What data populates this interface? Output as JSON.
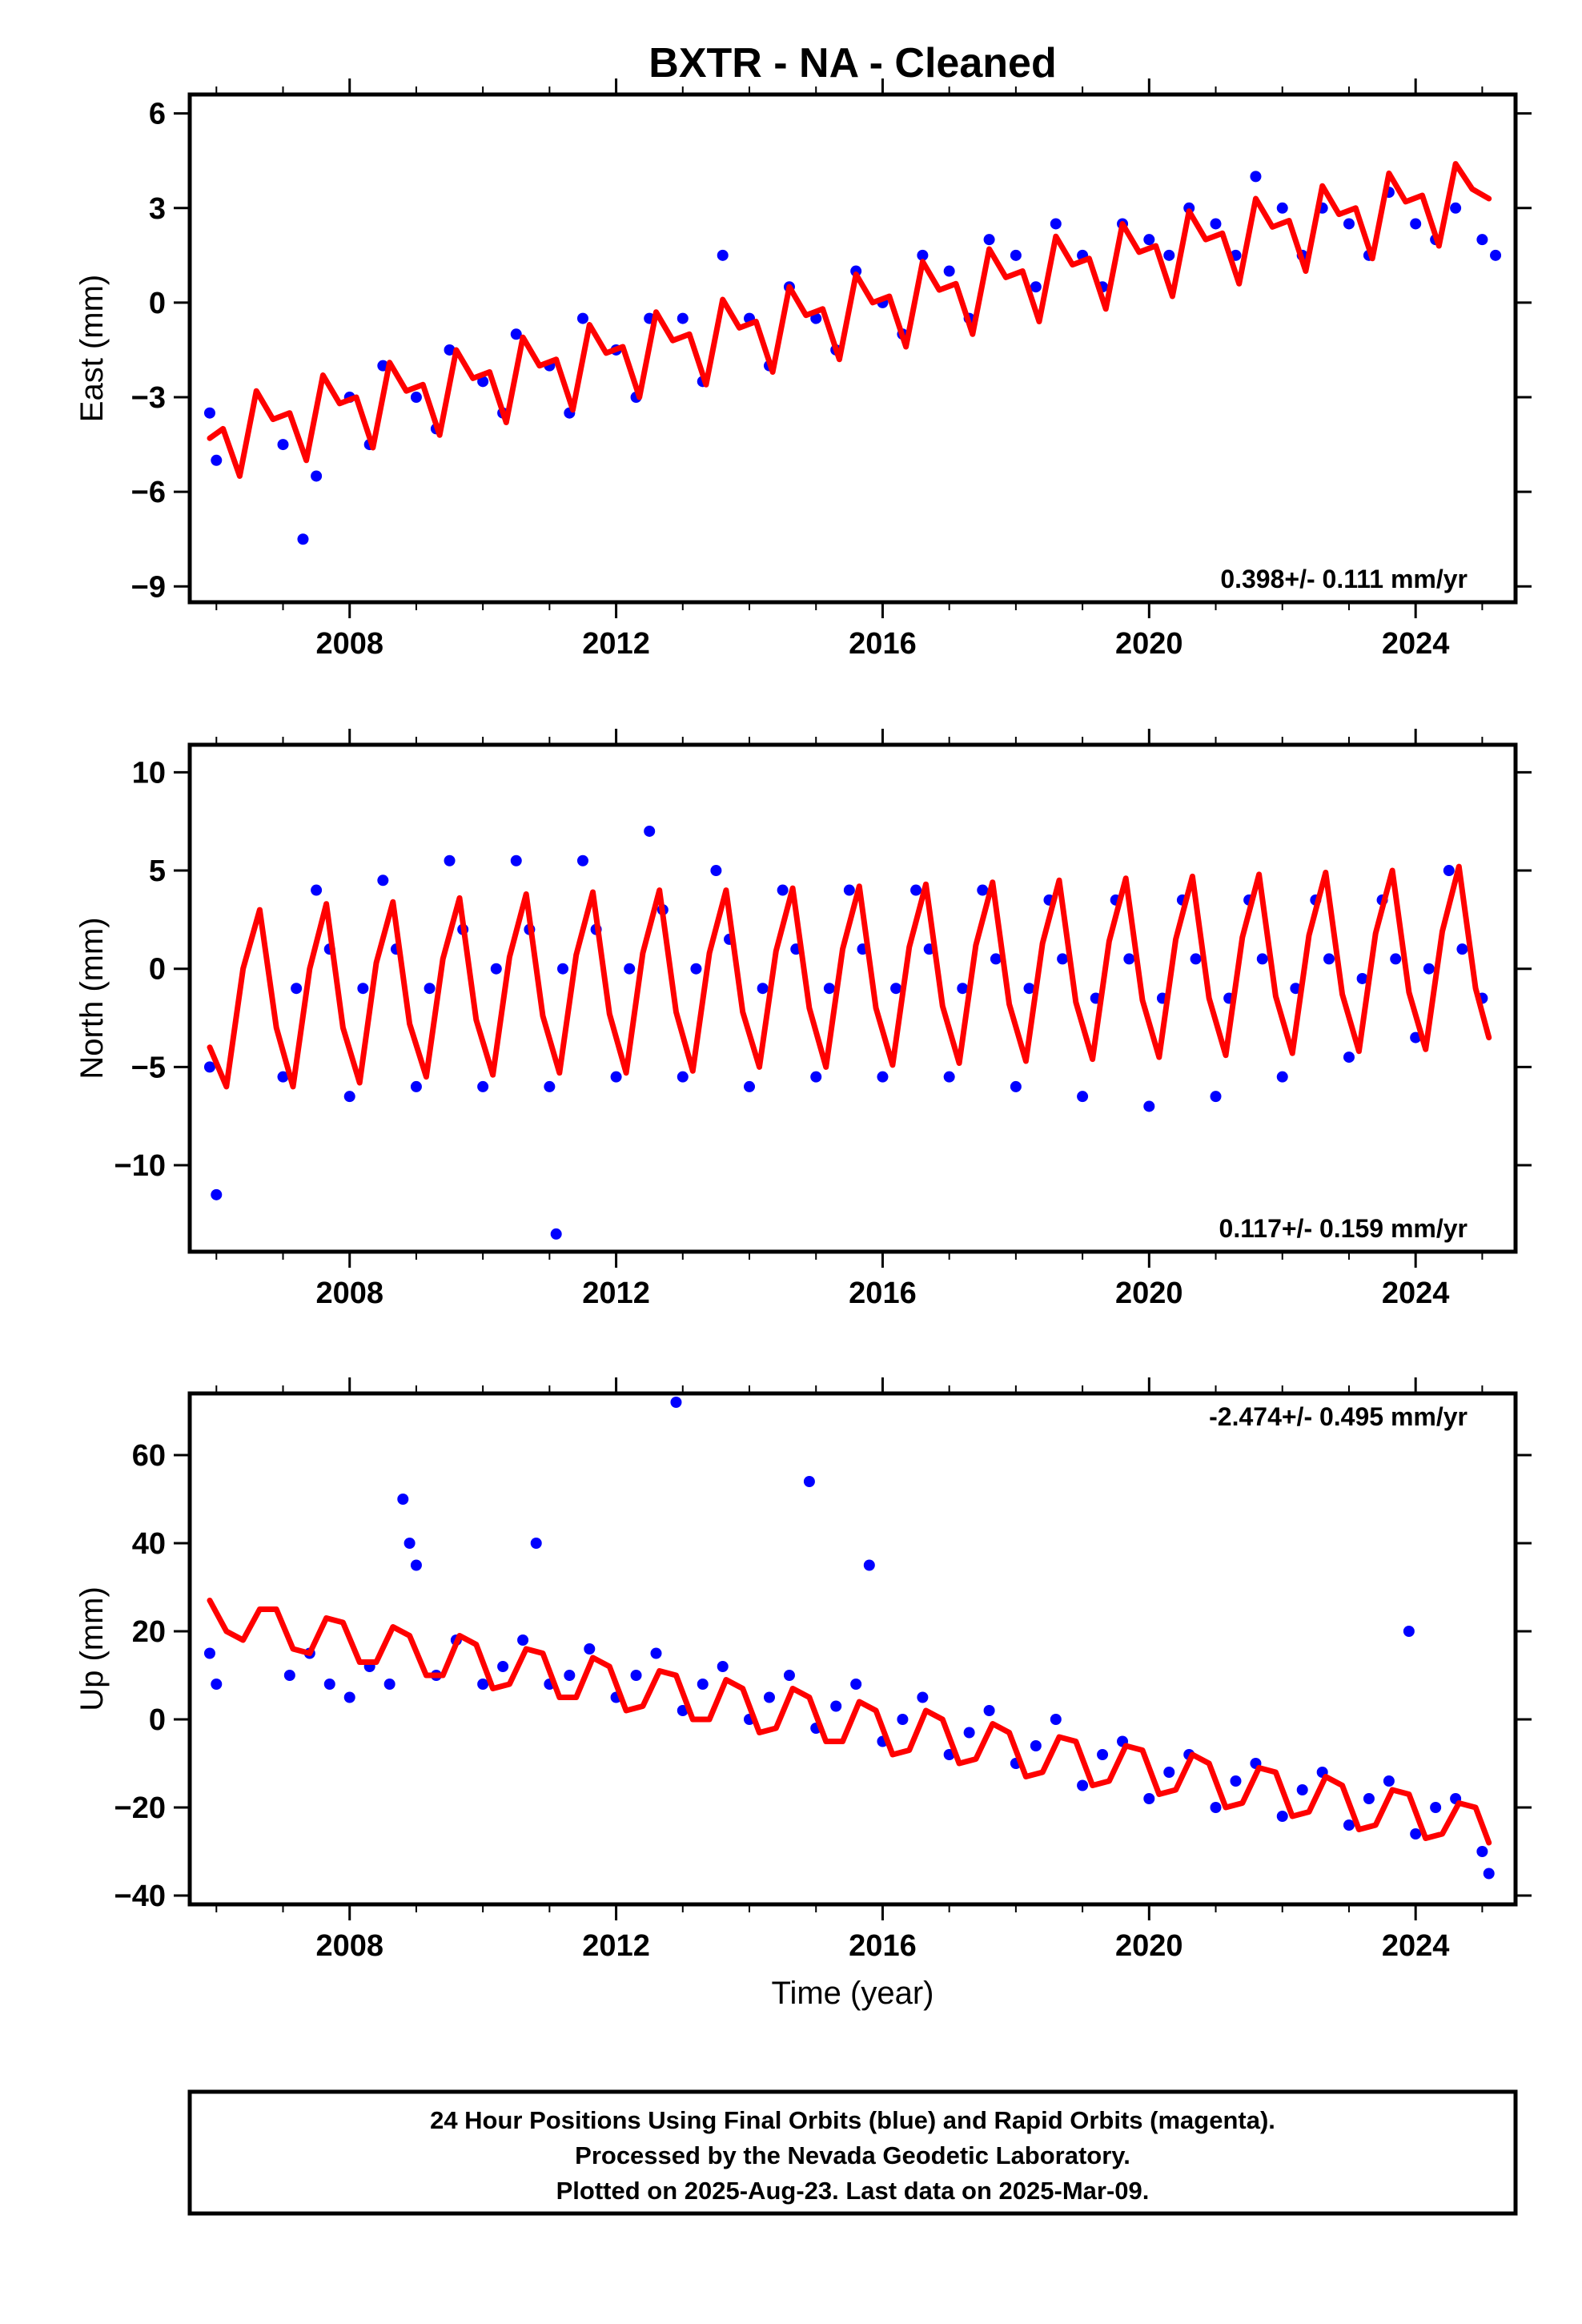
{
  "title": "BXTR  - NA - Cleaned",
  "xlabel": "Time (year)",
  "footer": {
    "lines": [
      "24 Hour Positions Using Final Orbits (blue) and Rapid Orbits (magenta).",
      "Processed by the Nevada Geodetic Laboratory.",
      "Plotted on 2025-Aug-23. Last data on 2025-Mar-09."
    ]
  },
  "colors": {
    "points": "#0000ff",
    "model": "#ff0000",
    "frame": "#000000"
  },
  "chart_data": [
    {
      "type": "scatter",
      "ylabel": "East (mm)",
      "xlim": [
        2005.6,
        2025.5
      ],
      "ylim": [
        -9.5,
        6.6
      ],
      "yticks": [
        6,
        3,
        0,
        -3,
        -6,
        -9
      ],
      "xticks": [
        2008,
        2012,
        2016,
        2020,
        2024
      ],
      "rate_label": "0.398+/- 0.111 mm/yr",
      "rate_position": "bottom-right",
      "series": [
        {
          "kind": "points",
          "color": "#0000ff",
          "x": [
            2005.9,
            2006.0,
            2007.0,
            2007.3,
            2007.5,
            2008.0,
            2008.3,
            2008.5,
            2009.0,
            2009.3,
            2009.5,
            2010.0,
            2010.3,
            2010.5,
            2011.0,
            2011.3,
            2011.5,
            2012.0,
            2012.3,
            2012.5,
            2013.0,
            2013.3,
            2013.6,
            2014.0,
            2014.3,
            2014.6,
            2015.0,
            2015.3,
            2015.6,
            2016.0,
            2016.3,
            2016.6,
            2017.0,
            2017.3,
            2017.6,
            2018.0,
            2018.3,
            2018.6,
            2019.0,
            2019.3,
            2019.6,
            2020.0,
            2020.3,
            2020.6,
            2021.0,
            2021.3,
            2021.6,
            2022.0,
            2022.3,
            2022.6,
            2023.0,
            2023.3,
            2023.6,
            2024.0,
            2024.3,
            2024.6,
            2025.0,
            2025.2
          ],
          "y": [
            -3.5,
            -5.0,
            -4.5,
            -7.5,
            -5.5,
            -3.0,
            -4.5,
            -2.0,
            -3.0,
            -4.0,
            -1.5,
            -2.5,
            -3.5,
            -1.0,
            -2.0,
            -3.5,
            -0.5,
            -1.5,
            -3.0,
            -0.5,
            -0.5,
            -2.5,
            1.5,
            -0.5,
            -2.0,
            0.5,
            -0.5,
            -1.5,
            1.0,
            0.0,
            -1.0,
            1.5,
            1.0,
            -0.5,
            2.0,
            1.5,
            0.5,
            2.5,
            1.5,
            0.5,
            2.5,
            2.0,
            1.5,
            3.0,
            2.5,
            1.5,
            4.0,
            3.0,
            1.5,
            3.0,
            2.5,
            1.5,
            3.5,
            2.5,
            2.0,
            3.0,
            2.0,
            1.5
          ]
        },
        {
          "kind": "model",
          "color": "#ff0000",
          "x": [
            2005.9,
            2006.1,
            2006.35,
            2006.6,
            2006.85,
            2007.1,
            2007.35,
            2007.6,
            2007.85,
            2008.1,
            2008.35,
            2008.6,
            2008.85,
            2009.1,
            2009.35,
            2009.6,
            2009.85,
            2010.1,
            2010.35,
            2010.6,
            2010.85,
            2011.1,
            2011.35,
            2011.6,
            2011.85,
            2012.1,
            2012.35,
            2012.6,
            2012.85,
            2013.1,
            2013.35,
            2013.6,
            2013.85,
            2014.1,
            2014.35,
            2014.6,
            2014.85,
            2015.1,
            2015.35,
            2015.6,
            2015.85,
            2016.1,
            2016.35,
            2016.6,
            2016.85,
            2017.1,
            2017.35,
            2017.6,
            2017.85,
            2018.1,
            2018.35,
            2018.6,
            2018.85,
            2019.1,
            2019.35,
            2019.6,
            2019.85,
            2020.1,
            2020.35,
            2020.6,
            2020.85,
            2021.1,
            2021.35,
            2021.6,
            2021.85,
            2022.1,
            2022.35,
            2022.6,
            2022.85,
            2023.1,
            2023.35,
            2023.6,
            2023.85,
            2024.1,
            2024.35,
            2024.6,
            2024.85,
            2025.1
          ],
          "y": [
            -4.3,
            -4.0,
            -5.5,
            -2.8,
            -3.7,
            -3.5,
            -5.0,
            -2.3,
            -3.2,
            -3.0,
            -4.6,
            -1.9,
            -2.8,
            -2.6,
            -4.2,
            -1.5,
            -2.4,
            -2.2,
            -3.8,
            -1.1,
            -2.0,
            -1.8,
            -3.4,
            -0.7,
            -1.6,
            -1.4,
            -3.0,
            -0.3,
            -1.2,
            -1.0,
            -2.6,
            0.1,
            -0.8,
            -0.6,
            -2.2,
            0.5,
            -0.4,
            -0.2,
            -1.8,
            0.9,
            0.0,
            0.2,
            -1.4,
            1.3,
            0.4,
            0.6,
            -1.0,
            1.7,
            0.8,
            1.0,
            -0.6,
            2.1,
            1.2,
            1.4,
            -0.2,
            2.5,
            1.6,
            1.8,
            0.2,
            2.9,
            2.0,
            2.2,
            0.6,
            3.3,
            2.4,
            2.6,
            1.0,
            3.7,
            2.8,
            3.0,
            1.4,
            4.1,
            3.2,
            3.4,
            1.8,
            4.4,
            3.6,
            3.3
          ]
        }
      ]
    },
    {
      "type": "scatter",
      "ylabel": "North (mm)",
      "xlim": [
        2005.6,
        2025.5
      ],
      "ylim": [
        -14.4,
        11.4
      ],
      "yticks": [
        10,
        5,
        0,
        -5,
        -10
      ],
      "xticks": [
        2008,
        2012,
        2016,
        2020,
        2024
      ],
      "rate_label": "0.117+/- 0.159 mm/yr",
      "rate_position": "bottom-right",
      "series": [
        {
          "kind": "points",
          "color": "#0000ff",
          "x": [
            2005.9,
            2006.0,
            2007.0,
            2007.2,
            2007.5,
            2007.7,
            2008.0,
            2008.2,
            2008.5,
            2008.7,
            2009.0,
            2009.2,
            2009.5,
            2009.7,
            2010.0,
            2010.2,
            2010.5,
            2010.7,
            2011.0,
            2011.1,
            2011.2,
            2011.5,
            2011.7,
            2012.0,
            2012.2,
            2012.5,
            2012.7,
            2013.0,
            2013.2,
            2013.5,
            2013.7,
            2014.0,
            2014.2,
            2014.5,
            2014.7,
            2015.0,
            2015.2,
            2015.5,
            2015.7,
            2016.0,
            2016.2,
            2016.5,
            2016.7,
            2017.0,
            2017.2,
            2017.5,
            2017.7,
            2018.0,
            2018.2,
            2018.5,
            2018.7,
            2019.0,
            2019.2,
            2019.5,
            2019.7,
            2020.0,
            2020.2,
            2020.5,
            2020.7,
            2021.0,
            2021.2,
            2021.5,
            2021.7,
            2022.0,
            2022.2,
            2022.5,
            2022.7,
            2023.0,
            2023.2,
            2023.5,
            2023.7,
            2024.0,
            2024.2,
            2024.5,
            2024.7,
            2025.0
          ],
          "y": [
            -5.0,
            -11.5,
            -5.5,
            -1.0,
            4.0,
            1.0,
            -6.5,
            -1.0,
            4.5,
            1.0,
            -6.0,
            -1.0,
            5.5,
            2.0,
            -6.0,
            0.0,
            5.5,
            2.0,
            -6.0,
            -13.5,
            0.0,
            5.5,
            2.0,
            -5.5,
            0.0,
            7.0,
            3.0,
            -5.5,
            0.0,
            5.0,
            1.5,
            -6.0,
            -1.0,
            4.0,
            1.0,
            -5.5,
            -1.0,
            4.0,
            1.0,
            -5.5,
            -1.0,
            4.0,
            1.0,
            -5.5,
            -1.0,
            4.0,
            0.5,
            -6.0,
            -1.0,
            3.5,
            0.5,
            -6.5,
            -1.5,
            3.5,
            0.5,
            -7.0,
            -1.5,
            3.5,
            0.5,
            -6.5,
            -1.5,
            3.5,
            0.5,
            -5.5,
            -1.0,
            3.5,
            0.5,
            -4.5,
            -0.5,
            3.5,
            0.5,
            -3.5,
            0.0,
            5.0,
            1.0,
            -1.5
          ]
        },
        {
          "kind": "model",
          "color": "#ff0000",
          "x": [
            2005.9,
            2006.15,
            2006.4,
            2006.65,
            2006.9,
            2007.15,
            2007.4,
            2007.65,
            2007.9,
            2008.15,
            2008.4,
            2008.65,
            2008.9,
            2009.15,
            2009.4,
            2009.65,
            2009.9,
            2010.15,
            2010.4,
            2010.65,
            2010.9,
            2011.15,
            2011.4,
            2011.65,
            2011.9,
            2012.15,
            2012.4,
            2012.65,
            2012.9,
            2013.15,
            2013.4,
            2013.65,
            2013.9,
            2014.15,
            2014.4,
            2014.65,
            2014.9,
            2015.15,
            2015.4,
            2015.65,
            2015.9,
            2016.15,
            2016.4,
            2016.65,
            2016.9,
            2017.15,
            2017.4,
            2017.65,
            2017.9,
            2018.15,
            2018.4,
            2018.65,
            2018.9,
            2019.15,
            2019.4,
            2019.65,
            2019.9,
            2020.15,
            2020.4,
            2020.65,
            2020.9,
            2021.15,
            2021.4,
            2021.65,
            2021.9,
            2022.15,
            2022.4,
            2022.65,
            2022.9,
            2023.15,
            2023.4,
            2023.65,
            2023.9,
            2024.15,
            2024.4,
            2024.65,
            2024.9,
            2025.1
          ],
          "y": [
            -4.0,
            -6.0,
            0.0,
            3.0,
            -3.0,
            -6.0,
            0.0,
            3.3,
            -3.0,
            -5.8,
            0.3,
            3.4,
            -2.8,
            -5.5,
            0.5,
            3.6,
            -2.6,
            -5.4,
            0.6,
            3.8,
            -2.4,
            -5.3,
            0.7,
            3.9,
            -2.3,
            -5.3,
            0.8,
            4.0,
            -2.2,
            -5.2,
            0.8,
            4.0,
            -2.2,
            -5.0,
            0.9,
            4.1,
            -2.0,
            -5.0,
            1.0,
            4.2,
            -2.0,
            -4.9,
            1.1,
            4.3,
            -1.9,
            -4.8,
            1.2,
            4.4,
            -1.8,
            -4.7,
            1.3,
            4.5,
            -1.7,
            -4.6,
            1.4,
            4.6,
            -1.6,
            -4.5,
            1.5,
            4.7,
            -1.5,
            -4.4,
            1.6,
            4.8,
            -1.4,
            -4.3,
            1.7,
            4.9,
            -1.3,
            -4.2,
            1.8,
            5.0,
            -1.2,
            -4.1,
            1.9,
            5.2,
            -1.0,
            -3.5
          ]
        }
      ]
    },
    {
      "type": "scatter",
      "ylabel": "Up (mm)",
      "xlim": [
        2005.6,
        2025.5
      ],
      "ylim": [
        -42,
        74
      ],
      "yticks": [
        60,
        40,
        20,
        0,
        -20,
        -40
      ],
      "xticks": [
        2008,
        2012,
        2016,
        2020,
        2024
      ],
      "rate_label": "-2.474+/- 0.495 mm/yr",
      "rate_position": "top-right",
      "series": [
        {
          "kind": "points",
          "color": "#0000ff",
          "x": [
            2005.9,
            2006.0,
            2007.1,
            2007.4,
            2007.7,
            2008.0,
            2008.3,
            2008.6,
            2008.8,
            2008.9,
            2009.0,
            2009.3,
            2009.6,
            2010.0,
            2010.3,
            2010.6,
            2010.8,
            2011.0,
            2011.3,
            2011.6,
            2012.0,
            2012.3,
            2012.6,
            2012.9,
            2013.0,
            2013.3,
            2013.6,
            2014.0,
            2014.3,
            2014.6,
            2014.9,
            2015.0,
            2015.3,
            2015.6,
            2015.8,
            2016.0,
            2016.3,
            2016.6,
            2017.0,
            2017.3,
            2017.6,
            2018.0,
            2018.3,
            2018.6,
            2019.0,
            2019.3,
            2019.6,
            2020.0,
            2020.3,
            2020.6,
            2021.0,
            2021.3,
            2021.6,
            2022.0,
            2022.3,
            2022.6,
            2023.0,
            2023.3,
            2023.6,
            2023.9,
            2024.0,
            2024.3,
            2024.6,
            2025.0,
            2025.1
          ],
          "y": [
            15.0,
            8.0,
            10.0,
            15.0,
            8.0,
            5.0,
            12.0,
            8.0,
            50.0,
            40.0,
            35.0,
            10.0,
            18.0,
            8.0,
            12.0,
            18.0,
            40.0,
            8.0,
            10.0,
            16.0,
            5.0,
            10.0,
            15.0,
            72.0,
            2.0,
            8.0,
            12.0,
            0.0,
            5.0,
            10.0,
            54.0,
            -2.0,
            3.0,
            8.0,
            35.0,
            -5.0,
            0.0,
            5.0,
            -8.0,
            -3.0,
            2.0,
            -10.0,
            -6.0,
            0.0,
            -15.0,
            -8.0,
            -5.0,
            -18.0,
            -12.0,
            -8.0,
            -20.0,
            -14.0,
            -10.0,
            -22.0,
            -16.0,
            -12.0,
            -24.0,
            -18.0,
            -14.0,
            20.0,
            -26.0,
            -20.0,
            -18.0,
            -30.0,
            -35.0
          ]
        },
        {
          "kind": "model",
          "color": "#ff0000",
          "x": [
            2005.9,
            2006.15,
            2006.4,
            2006.65,
            2006.9,
            2007.15,
            2007.4,
            2007.65,
            2007.9,
            2008.15,
            2008.4,
            2008.65,
            2008.9,
            2009.15,
            2009.4,
            2009.65,
            2009.9,
            2010.15,
            2010.4,
            2010.65,
            2010.9,
            2011.15,
            2011.4,
            2011.65,
            2011.9,
            2012.15,
            2012.4,
            2012.65,
            2012.9,
            2013.15,
            2013.4,
            2013.65,
            2013.9,
            2014.15,
            2014.4,
            2014.65,
            2014.9,
            2015.15,
            2015.4,
            2015.65,
            2015.9,
            2016.15,
            2016.4,
            2016.65,
            2016.9,
            2017.15,
            2017.4,
            2017.65,
            2017.9,
            2018.15,
            2018.4,
            2018.65,
            2018.9,
            2019.15,
            2019.4,
            2019.65,
            2019.9,
            2020.15,
            2020.4,
            2020.65,
            2020.9,
            2021.15,
            2021.4,
            2021.65,
            2021.9,
            2022.15,
            2022.4,
            2022.65,
            2022.9,
            2023.15,
            2023.4,
            2023.65,
            2023.9,
            2024.15,
            2024.4,
            2024.65,
            2024.9,
            2025.1
          ],
          "y": [
            27.0,
            20.0,
            18.0,
            25.0,
            25.0,
            16.0,
            15.0,
            23.0,
            22.0,
            13.0,
            13.0,
            21.0,
            19.0,
            10.0,
            10.0,
            19.0,
            17.0,
            7.0,
            8.0,
            16.0,
            15.0,
            5.0,
            5.0,
            14.0,
            12.0,
            2.0,
            3.0,
            11.0,
            10.0,
            0.0,
            0.0,
            9.0,
            7.0,
            -3.0,
            -2.0,
            7.0,
            5.0,
            -5.0,
            -5.0,
            4.0,
            2.0,
            -8.0,
            -7.0,
            2.0,
            0.0,
            -10.0,
            -9.0,
            -1.0,
            -3.0,
            -13.0,
            -12.0,
            -4.0,
            -5.0,
            -15.0,
            -14.0,
            -6.0,
            -7.0,
            -17.0,
            -16.0,
            -8.0,
            -10.0,
            -20.0,
            -19.0,
            -11.0,
            -12.0,
            -22.0,
            -21.0,
            -13.0,
            -15.0,
            -25.0,
            -24.0,
            -16.0,
            -17.0,
            -27.0,
            -26.0,
            -19.0,
            -20.0,
            -28.0
          ]
        }
      ]
    }
  ]
}
